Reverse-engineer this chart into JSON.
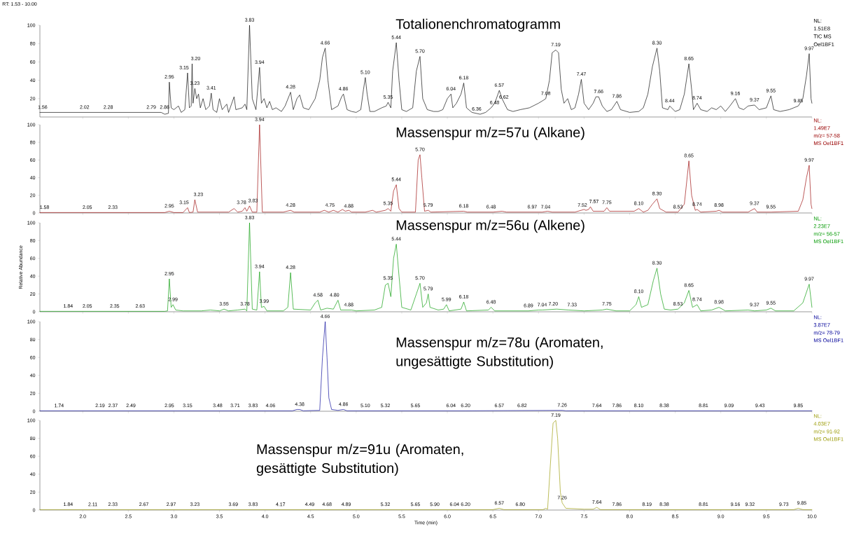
{
  "chart_data": [
    {
      "type": "line",
      "title": "Totalionenchromatogramm",
      "subtitle": "RT: 1.53 - 10.00",
      "color": "#000000",
      "xlim": [
        1.53,
        10
      ],
      "ylim": [
        0,
        100
      ],
      "yticks": [
        20,
        40,
        60,
        80,
        100
      ],
      "tick_labels": "y",
      "xticks": [
        2,
        2.5,
        3,
        3.5,
        4,
        4.5,
        5,
        5.5,
        6,
        6.5,
        7,
        7.5,
        8,
        8.5,
        9,
        9.5,
        10
      ],
      "x": [
        1.53,
        1.56,
        2.0,
        2.5,
        2.8,
        2.86,
        2.9,
        2.94,
        2.95,
        2.97,
        3.0,
        3.05,
        3.08,
        3.12,
        3.15,
        3.17,
        3.19,
        3.2,
        3.21,
        3.23,
        3.25,
        3.27,
        3.29,
        3.32,
        3.35,
        3.39,
        3.41,
        3.43,
        3.47,
        3.5,
        3.53,
        3.58,
        3.6,
        3.66,
        3.68,
        3.75,
        3.78,
        3.8,
        3.83,
        3.86,
        3.9,
        3.94,
        3.96,
        3.99,
        4.02,
        4.05,
        4.08,
        4.12,
        4.18,
        4.22,
        4.28,
        4.31,
        4.35,
        4.38,
        4.42,
        4.48,
        4.55,
        4.6,
        4.63,
        4.66,
        4.69,
        4.73,
        4.8,
        4.84,
        4.86,
        4.9,
        4.95,
        5.0,
        5.05,
        5.08,
        5.1,
        5.12,
        5.15,
        5.2,
        5.28,
        5.33,
        5.35,
        5.38,
        5.4,
        5.44,
        5.47,
        5.5,
        5.55,
        5.62,
        5.66,
        5.7,
        5.73,
        5.78,
        5.85,
        5.9,
        5.95,
        6.0,
        6.04,
        6.06,
        6.1,
        6.15,
        6.18,
        6.21,
        6.27,
        6.36,
        6.42,
        6.48,
        6.52,
        6.57,
        6.6,
        6.62,
        6.66,
        6.72,
        6.8,
        6.9,
        7.0,
        7.05,
        7.08,
        7.12,
        7.15,
        7.19,
        7.22,
        7.25,
        7.28,
        7.32,
        7.36,
        7.4,
        7.44,
        7.47,
        7.5,
        7.55,
        7.6,
        7.63,
        7.66,
        7.7,
        7.75,
        7.8,
        7.86,
        7.9,
        8.0,
        8.1,
        8.15,
        8.2,
        8.25,
        8.3,
        8.33,
        8.36,
        8.42,
        8.44,
        8.5,
        8.55,
        8.6,
        8.65,
        8.68,
        8.7,
        8.74,
        8.78,
        8.85,
        8.9,
        8.95,
        9.0,
        9.05,
        9.1,
        9.16,
        9.2,
        9.25,
        9.3,
        9.37,
        9.42,
        9.5,
        9.55,
        9.58,
        9.65,
        9.75,
        9.8,
        9.85,
        9.9,
        9.94,
        9.97,
        9.99,
        10.0
      ],
      "values": [
        5,
        5,
        5,
        5,
        5,
        5,
        3,
        4,
        38,
        10,
        8,
        12,
        5,
        8,
        48,
        10,
        12,
        58,
        15,
        31,
        20,
        25,
        10,
        20,
        8,
        12,
        26,
        8,
        5,
        20,
        8,
        14,
        5,
        22,
        8,
        10,
        14,
        8,
        100,
        20,
        8,
        54,
        15,
        20,
        10,
        17,
        8,
        10,
        6,
        12,
        27,
        8,
        20,
        24,
        10,
        8,
        20,
        40,
        65,
        75,
        40,
        8,
        12,
        22,
        25,
        8,
        6,
        5,
        8,
        30,
        43,
        25,
        6,
        6,
        10,
        12,
        16,
        10,
        50,
        81,
        40,
        8,
        6,
        10,
        50,
        66,
        20,
        8,
        6,
        6,
        8,
        20,
        25,
        10,
        15,
        25,
        37,
        10,
        5,
        3,
        5,
        10,
        15,
        29,
        20,
        16,
        8,
        6,
        8,
        10,
        15,
        18,
        20,
        40,
        70,
        73,
        70,
        30,
        15,
        20,
        8,
        10,
        25,
        41,
        15,
        8,
        15,
        22,
        22,
        12,
        6,
        8,
        17,
        8,
        5,
        6,
        10,
        25,
        55,
        75,
        50,
        10,
        8,
        12,
        6,
        8,
        25,
        58,
        30,
        8,
        15,
        8,
        6,
        10,
        8,
        12,
        6,
        12,
        20,
        10,
        8,
        12,
        13,
        8,
        10,
        23,
        8,
        6,
        8,
        10,
        12,
        20,
        45,
        69,
        20,
        15
      ],
      "annotations": [
        "NL:",
        "1.51E8",
        "TIC MS",
        "Oel1BF1",
        {
          "text": "1.56",
          "x": 1.56,
          "y": 5
        },
        {
          "text": "2.02",
          "x": 2.02,
          "y": 5
        },
        {
          "text": "2.28",
          "x": 2.28,
          "y": 5
        },
        {
          "text": "2.79",
          "x": 2.79,
          "y": 5
        },
        {
          "text": "2.86",
          "x": 2.86,
          "y": 5
        },
        {
          "text": "2.95",
          "x": 2.95,
          "y": 38
        },
        {
          "text": "3.15",
          "x": 3.15,
          "y": 48
        },
        {
          "text": "3.20",
          "x": 3.2,
          "y": 58
        },
        {
          "text": "3.23",
          "x": 3.23,
          "y": 31
        },
        {
          "text": "3.41",
          "x": 3.41,
          "y": 26
        },
        {
          "text": "3.83",
          "x": 3.83,
          "y": 100
        },
        {
          "text": "3.94",
          "x": 3.94,
          "y": 54
        },
        {
          "text": "4.28",
          "x": 4.28,
          "y": 27
        },
        {
          "text": "4.66",
          "x": 4.66,
          "y": 75
        },
        {
          "text": "4.86",
          "x": 4.86,
          "y": 25
        },
        {
          "text": "5.10",
          "x": 5.1,
          "y": 43
        },
        {
          "text": "5.35",
          "x": 5.35,
          "y": 16
        },
        {
          "text": "5.44",
          "x": 5.44,
          "y": 81
        },
        {
          "text": "5.70",
          "x": 5.7,
          "y": 66
        },
        {
          "text": "6.04",
          "x": 6.04,
          "y": 25
        },
        {
          "text": "6.18",
          "x": 6.18,
          "y": 37
        },
        {
          "text": "6.36",
          "x": 6.36,
          "y": 3
        },
        {
          "text": "6.48",
          "x": 6.48,
          "y": 10
        },
        {
          "text": "6.57",
          "x": 6.57,
          "y": 29
        },
        {
          "text": "6.62",
          "x": 6.62,
          "y": 16
        },
        {
          "text": "7.08",
          "x": 7.08,
          "y": 20
        },
        {
          "text": "7.19",
          "x": 7.19,
          "y": 73
        },
        {
          "text": "7.47",
          "x": 7.47,
          "y": 41
        },
        {
          "text": "7.66",
          "x": 7.66,
          "y": 22
        },
        {
          "text": "7.86",
          "x": 7.86,
          "y": 17
        },
        {
          "text": "8.30",
          "x": 8.3,
          "y": 75
        },
        {
          "text": "8.44",
          "x": 8.44,
          "y": 12
        },
        {
          "text": "8.65",
          "x": 8.65,
          "y": 58
        },
        {
          "text": "8.74",
          "x": 8.74,
          "y": 15
        },
        {
          "text": "9.16",
          "x": 9.16,
          "y": 20
        },
        {
          "text": "9.37",
          "x": 9.37,
          "y": 13
        },
        {
          "text": "9.55",
          "x": 9.55,
          "y": 23
        },
        {
          "text": "9.85",
          "x": 9.85,
          "y": 12
        },
        {
          "text": "9.97",
          "x": 9.97,
          "y": 69
        }
      ]
    },
    {
      "type": "line",
      "title": "Massenspur m/z=57u (Alkane)",
      "color": "#990000",
      "xlim": [
        1.53,
        10
      ],
      "ylim": [
        0,
        100
      ],
      "yticks": [
        0,
        20,
        40,
        60,
        80,
        100
      ],
      "tick_labels": "y",
      "xticks": [
        2,
        2.5,
        3,
        3.5,
        4,
        4.5,
        5,
        5.5,
        6,
        6.5,
        7,
        7.5,
        8,
        8.5,
        9,
        9.5,
        10
      ],
      "x": [
        1.53,
        2.9,
        2.95,
        3.0,
        3.1,
        3.15,
        3.17,
        3.21,
        3.23,
        3.26,
        3.6,
        3.66,
        3.7,
        3.75,
        3.78,
        3.8,
        3.83,
        3.86,
        3.91,
        3.94,
        3.97,
        4.2,
        4.28,
        4.32,
        4.6,
        4.65,
        4.7,
        4.75,
        4.8,
        4.85,
        4.88,
        4.92,
        4.95,
        5.1,
        5.18,
        5.22,
        5.32,
        5.35,
        5.38,
        5.41,
        5.44,
        5.47,
        5.5,
        5.65,
        5.68,
        5.7,
        5.72,
        5.75,
        5.79,
        5.82,
        6.18,
        6.22,
        6.5,
        6.6,
        6.65,
        7.04,
        7.1,
        7.15,
        7.4,
        7.5,
        7.52,
        7.55,
        7.57,
        7.6,
        7.72,
        7.75,
        7.78,
        8.05,
        8.1,
        8.15,
        8.2,
        8.25,
        8.3,
        8.33,
        8.4,
        8.53,
        8.6,
        8.65,
        8.68,
        8.72,
        8.74,
        8.78,
        8.95,
        8.98,
        9.02,
        9.3,
        9.37,
        9.4,
        9.55,
        9.85,
        9.9,
        9.94,
        9.97,
        9.99,
        10.0
      ],
      "values": [
        0.5,
        0.5,
        2,
        0.5,
        0.5,
        6,
        0.5,
        1,
        15,
        1,
        1,
        5,
        1,
        2,
        6,
        2,
        8,
        1,
        1,
        100,
        1,
        1,
        3,
        1,
        1,
        3,
        1,
        3,
        1,
        4,
        2,
        3,
        1,
        1,
        3,
        1,
        3,
        5,
        2,
        25,
        32,
        5,
        1,
        1,
        60,
        66,
        40,
        2,
        3,
        1,
        2,
        1,
        1,
        2,
        1,
        1,
        2,
        1,
        1,
        4,
        3,
        4,
        7,
        2,
        2,
        6,
        2,
        2,
        5,
        1,
        3,
        10,
        16,
        5,
        1,
        1,
        10,
        59,
        20,
        3,
        4,
        1,
        2,
        3,
        1,
        1,
        5,
        1,
        1,
        2,
        15,
        40,
        54,
        10,
        5
      ],
      "annotations": [
        "NL:",
        "1.49E7",
        "m/z= 57-58",
        "MS Oel1BF1",
        {
          "text": "1.58",
          "x": 1.58,
          "y": 0.5
        },
        {
          "text": "2.05",
          "x": 2.05,
          "y": 0.5
        },
        {
          "text": "2.33",
          "x": 2.33,
          "y": 0.5
        },
        {
          "text": "2.95",
          "x": 2.95,
          "y": 2
        },
        {
          "text": "3.15",
          "x": 3.15,
          "y": 6
        },
        {
          "text": "3.23",
          "x": 3.23,
          "y": 15
        },
        {
          "text": "3.78",
          "x": 3.78,
          "y": 6
        },
        {
          "text": "3.83",
          "x": 3.83,
          "y": 8
        },
        {
          "text": "3.94",
          "x": 3.94,
          "y": 100
        },
        {
          "text": "4.28",
          "x": 4.28,
          "y": 3
        },
        {
          "text": "4.75",
          "x": 4.75,
          "y": 3
        },
        {
          "text": "4.88",
          "x": 4.88,
          "y": 2
        },
        {
          "text": "5.35",
          "x": 5.35,
          "y": 5
        },
        {
          "text": "5.44",
          "x": 5.44,
          "y": 32
        },
        {
          "text": "5.70",
          "x": 5.7,
          "y": 66
        },
        {
          "text": "5.79",
          "x": 5.79,
          "y": 3
        },
        {
          "text": "6.18",
          "x": 6.18,
          "y": 2
        },
        {
          "text": "6.48",
          "x": 6.48,
          "y": 1
        },
        {
          "text": "6.97",
          "x": 6.97,
          "y": 1
        },
        {
          "text": "7.04",
          "x": 7.04,
          "y": 1
        },
        {
          "text": "7.52",
          "x": 7.52,
          "y": 3
        },
        {
          "text": "7.57",
          "x": 7.57,
          "y": 7
        },
        {
          "text": "7.75",
          "x": 7.75,
          "y": 6
        },
        {
          "text": "8.10",
          "x": 8.1,
          "y": 5
        },
        {
          "text": "8.30",
          "x": 8.3,
          "y": 16
        },
        {
          "text": "8.53",
          "x": 8.53,
          "y": 1
        },
        {
          "text": "8.65",
          "x": 8.65,
          "y": 59
        },
        {
          "text": "8.74",
          "x": 8.74,
          "y": 4
        },
        {
          "text": "8.98",
          "x": 8.98,
          "y": 3
        },
        {
          "text": "9.37",
          "x": 9.37,
          "y": 5
        },
        {
          "text": "9.55",
          "x": 9.55,
          "y": 1
        },
        {
          "text": "9.97",
          "x": 9.97,
          "y": 54
        }
      ]
    },
    {
      "type": "line",
      "title": "Massenspur m/z=56u (Alkene)",
      "ylabel": "Relative Abundance",
      "color": "#009900",
      "xlim": [
        1.53,
        10
      ],
      "ylim": [
        0,
        100
      ],
      "yticks": [
        0,
        20,
        40,
        60,
        80,
        100
      ],
      "tick_labels": "y",
      "xticks": [
        2,
        2.5,
        3,
        3.5,
        4,
        4.5,
        5,
        5.5,
        6,
        6.5,
        7,
        7.5,
        8,
        8.5,
        9,
        9.5,
        10
      ],
      "x": [
        1.53,
        2.9,
        2.93,
        2.95,
        2.97,
        2.99,
        3.02,
        3.1,
        3.3,
        3.4,
        3.5,
        3.55,
        3.6,
        3.7,
        3.78,
        3.8,
        3.83,
        3.86,
        3.91,
        3.94,
        3.96,
        3.99,
        4.02,
        4.2,
        4.25,
        4.28,
        4.31,
        4.5,
        4.55,
        4.58,
        4.61,
        4.68,
        4.75,
        4.8,
        4.83,
        4.88,
        4.95,
        5.0,
        5.2,
        5.28,
        5.32,
        5.35,
        5.38,
        5.41,
        5.44,
        5.47,
        5.5,
        5.6,
        5.66,
        5.7,
        5.73,
        5.77,
        5.79,
        5.81,
        5.9,
        5.96,
        5.99,
        6.02,
        6.15,
        6.18,
        6.21,
        6.45,
        6.48,
        6.52,
        6.89,
        7.0,
        7.04,
        7.2,
        7.33,
        7.5,
        7.7,
        7.75,
        7.85,
        8.0,
        8.07,
        8.1,
        8.13,
        8.2,
        8.26,
        8.3,
        8.34,
        8.38,
        8.45,
        8.53,
        8.6,
        8.65,
        8.69,
        8.74,
        8.78,
        8.9,
        8.98,
        9.05,
        9.3,
        9.37,
        9.5,
        9.55,
        9.6,
        9.8,
        9.9,
        9.95,
        9.97,
        10.0
      ],
      "values": [
        0.5,
        0.5,
        1,
        37,
        5,
        8,
        2,
        1,
        1,
        2,
        1,
        3,
        1,
        2,
        3,
        1,
        100,
        3,
        2,
        45,
        5,
        6,
        1,
        1,
        5,
        44,
        3,
        2,
        10,
        13,
        2,
        4,
        3,
        13,
        2,
        2,
        2,
        1,
        2,
        5,
        30,
        32,
        17,
        60,
        76,
        40,
        5,
        2,
        20,
        32,
        5,
        10,
        20,
        5,
        2,
        3,
        8,
        1,
        3,
        11,
        1,
        2,
        5,
        1,
        1,
        2,
        2,
        3,
        2,
        1,
        2,
        3,
        1,
        1,
        8,
        17,
        5,
        8,
        35,
        49,
        20,
        3,
        2,
        3,
        10,
        24,
        5,
        8,
        1,
        2,
        5,
        1,
        2,
        1,
        2,
        4,
        1,
        1,
        10,
        25,
        31,
        5
      ],
      "annotations": [
        "NL:",
        "2.23E7",
        "m/z= 56-57",
        "MS Oel1BF1",
        {
          "text": "1.84",
          "x": 1.84,
          "y": 0.5
        },
        {
          "text": "2.05",
          "x": 2.05,
          "y": 0.5
        },
        {
          "text": "2.35",
          "x": 2.35,
          "y": 0.5
        },
        {
          "text": "2.63",
          "x": 2.63,
          "y": 0.5
        },
        {
          "text": "2.95",
          "x": 2.95,
          "y": 37
        },
        {
          "text": "2.99",
          "x": 2.99,
          "y": 8
        },
        {
          "text": "3.55",
          "x": 3.55,
          "y": 3
        },
        {
          "text": "3.78",
          "x": 3.78,
          "y": 3
        },
        {
          "text": "3.83",
          "x": 3.83,
          "y": 100
        },
        {
          "text": "3.94",
          "x": 3.94,
          "y": 45
        },
        {
          "text": "3.99",
          "x": 3.99,
          "y": 6
        },
        {
          "text": "4.28",
          "x": 4.28,
          "y": 44
        },
        {
          "text": "4.58",
          "x": 4.58,
          "y": 13
        },
        {
          "text": "4.80",
          "x": 4.8,
          "y": 13
        },
        {
          "text": "4.88",
          "x": 4.88,
          "y": 2
        },
        {
          "text": "5.35",
          "x": 5.35,
          "y": 32
        },
        {
          "text": "5.44",
          "x": 5.44,
          "y": 76
        },
        {
          "text": "5.70",
          "x": 5.7,
          "y": 32
        },
        {
          "text": "5.79",
          "x": 5.79,
          "y": 20
        },
        {
          "text": "5.99",
          "x": 5.99,
          "y": 8
        },
        {
          "text": "6.18",
          "x": 6.18,
          "y": 11
        },
        {
          "text": "6.48",
          "x": 6.48,
          "y": 5
        },
        {
          "text": "6.89",
          "x": 6.89,
          "y": 1
        },
        {
          "text": "7.04",
          "x": 7.04,
          "y": 2
        },
        {
          "text": "7.20",
          "x": 7.2,
          "y": 3
        },
        {
          "text": "7.33",
          "x": 7.33,
          "y": 2
        },
        {
          "text": "7.75",
          "x": 7.75,
          "y": 3
        },
        {
          "text": "8.10",
          "x": 8.1,
          "y": 17
        },
        {
          "text": "8.30",
          "x": 8.3,
          "y": 49
        },
        {
          "text": "8.53",
          "x": 8.53,
          "y": 3
        },
        {
          "text": "8.65",
          "x": 8.65,
          "y": 24
        },
        {
          "text": "8.74",
          "x": 8.74,
          "y": 8
        },
        {
          "text": "8.98",
          "x": 8.98,
          "y": 5
        },
        {
          "text": "9.37",
          "x": 9.37,
          "y": 2
        },
        {
          "text": "9.55",
          "x": 9.55,
          "y": 4
        },
        {
          "text": "9.97",
          "x": 9.97,
          "y": 31
        }
      ]
    },
    {
      "type": "line",
      "title": "Massenspur m/z=78u (Aromaten, ungesättigte Substitution)",
      "color": "#000099",
      "xlim": [
        1.53,
        10
      ],
      "ylim": [
        0,
        100
      ],
      "yticks": [
        0,
        20,
        40,
        60,
        80,
        100
      ],
      "tick_labels": "y",
      "xticks": [
        2,
        2.5,
        3,
        3.5,
        4,
        4.5,
        5,
        5.5,
        6,
        6.5,
        7,
        7.5,
        8,
        8.5,
        9,
        9.5,
        10
      ],
      "x": [
        1.53,
        4.3,
        4.35,
        4.38,
        4.42,
        4.6,
        4.63,
        4.66,
        4.68,
        4.7,
        4.73,
        4.8,
        4.86,
        4.9,
        6.2,
        7.26,
        7.3,
        10.0
      ],
      "values": [
        0.5,
        0.5,
        2,
        2,
        0.5,
        1,
        60,
        100,
        60,
        15,
        2,
        1,
        2,
        0.5,
        0.5,
        1,
        0.5,
        0.5
      ],
      "annotations": [
        "NL:",
        "3.87E7",
        "m/z= 78-79",
        "MS Oel1BF1",
        {
          "text": "1.74",
          "x": 1.74,
          "y": 0.5
        },
        {
          "text": "2.19",
          "x": 2.19,
          "y": 0.5
        },
        {
          "text": "2.37",
          "x": 2.37,
          "y": 0.5
        },
        {
          "text": "2.49",
          "x": 2.49,
          "y": 0.5
        },
        {
          "text": "2.95",
          "x": 2.95,
          "y": 0.5
        },
        {
          "text": "3.15",
          "x": 3.15,
          "y": 0.5
        },
        {
          "text": "3.48",
          "x": 3.48,
          "y": 0.5
        },
        {
          "text": "3.71",
          "x": 3.71,
          "y": 0.5
        },
        {
          "text": "3.83",
          "x": 3.83,
          "y": 0.5
        },
        {
          "text": "4.06",
          "x": 4.06,
          "y": 0.5
        },
        {
          "text": "4.38",
          "x": 4.38,
          "y": 2
        },
        {
          "text": "4.66",
          "x": 4.66,
          "y": 100
        },
        {
          "text": "4.86",
          "x": 4.86,
          "y": 2
        },
        {
          "text": "5.10",
          "x": 5.1,
          "y": 0.5
        },
        {
          "text": "5.32",
          "x": 5.32,
          "y": 0.5
        },
        {
          "text": "5.65",
          "x": 5.65,
          "y": 0.5
        },
        {
          "text": "6.04",
          "x": 6.04,
          "y": 0.5
        },
        {
          "text": "6.20",
          "x": 6.2,
          "y": 0.5
        },
        {
          "text": "6.57",
          "x": 6.57,
          "y": 0.5
        },
        {
          "text": "6.82",
          "x": 6.82,
          "y": 0.5
        },
        {
          "text": "7.26",
          "x": 7.26,
          "y": 1
        },
        {
          "text": "7.64",
          "x": 7.64,
          "y": 0.5
        },
        {
          "text": "7.86",
          "x": 7.86,
          "y": 0.5
        },
        {
          "text": "8.10",
          "x": 8.1,
          "y": 0.5
        },
        {
          "text": "8.38",
          "x": 8.38,
          "y": 0.5
        },
        {
          "text": "8.81",
          "x": 8.81,
          "y": 0.5
        },
        {
          "text": "9.09",
          "x": 9.09,
          "y": 0.5
        },
        {
          "text": "9.43",
          "x": 9.43,
          "y": 0.5
        },
        {
          "text": "9.85",
          "x": 9.85,
          "y": 0.5
        }
      ]
    },
    {
      "type": "line",
      "title": "Massenspur m/z=91u (Aromaten, gesättigte Substitution)",
      "xlabel": "Time (min)",
      "color": "#999900",
      "xlim": [
        1.53,
        10
      ],
      "ylim": [
        0,
        100
      ],
      "yticks": [
        0,
        20,
        40,
        60,
        80,
        100
      ],
      "xticks": [
        {
          "value": 2,
          "label": "2.0"
        },
        {
          "value": 2.5,
          "label": "2.5"
        },
        {
          "value": 3,
          "label": "3.0"
        },
        {
          "value": 3.5,
          "label": "3.5"
        },
        {
          "value": 4,
          "label": "4.0"
        },
        {
          "value": 4.5,
          "label": "4.5"
        },
        {
          "value": 5,
          "label": "5.0"
        },
        {
          "value": 5.5,
          "label": "5.5"
        },
        {
          "value": 6,
          "label": "6.0"
        },
        {
          "value": 6.5,
          "label": "6.5"
        },
        {
          "value": 7,
          "label": "7.0"
        },
        {
          "value": 7.5,
          "label": "7.5"
        },
        {
          "value": 8,
          "label": "8.0"
        },
        {
          "value": 8.5,
          "label": "8.5"
        },
        {
          "value": 9,
          "label": "9.0"
        },
        {
          "value": 9.5,
          "label": "9.5"
        },
        {
          "value": 10,
          "label": "10.0"
        }
      ],
      "x": [
        1.53,
        6.5,
        6.57,
        6.62,
        7.05,
        7.08,
        7.1,
        7.13,
        7.16,
        7.19,
        7.21,
        7.24,
        7.26,
        7.3,
        7.5,
        7.6,
        7.64,
        7.68,
        9.8,
        9.85,
        9.9,
        10.0
      ],
      "values": [
        0.5,
        0.5,
        2,
        0.5,
        0.5,
        2,
        1,
        50,
        97,
        100,
        80,
        20,
        8,
        2,
        1,
        1,
        3,
        0.5,
        0.5,
        2,
        0.5,
        0.5
      ],
      "annotations": [
        "NL:",
        "4.03E7",
        "m/z= 91-92",
        "MS Oel1BF1",
        {
          "text": "1.84",
          "x": 1.84,
          "y": 0.5
        },
        {
          "text": "2.11",
          "x": 2.11,
          "y": 0.5
        },
        {
          "text": "2.33",
          "x": 2.33,
          "y": 0.5
        },
        {
          "text": "2.67",
          "x": 2.67,
          "y": 0.5
        },
        {
          "text": "2.97",
          "x": 2.97,
          "y": 0.5
        },
        {
          "text": "3.23",
          "x": 3.23,
          "y": 0.5
        },
        {
          "text": "3.69",
          "x": 3.69,
          "y": 0.5
        },
        {
          "text": "3.83",
          "x": 3.83,
          "y": 0.5
        },
        {
          "text": "4.17",
          "x": 4.17,
          "y": 0.5
        },
        {
          "text": "4.49",
          "x": 4.49,
          "y": 0.5
        },
        {
          "text": "4.68",
          "x": 4.68,
          "y": 0.5
        },
        {
          "text": "4.89",
          "x": 4.89,
          "y": 0.5
        },
        {
          "text": "5.32",
          "x": 5.32,
          "y": 0.5
        },
        {
          "text": "5.65",
          "x": 5.65,
          "y": 0.5
        },
        {
          "text": "5.90",
          "x": 5.9,
          "y": 0.5
        },
        {
          "text": "6.04",
          "x": 6.04,
          "y": 0.5
        },
        {
          "text": "6.20",
          "x": 6.2,
          "y": 0.5
        },
        {
          "text": "6.57",
          "x": 6.57,
          "y": 2
        },
        {
          "text": "6.80",
          "x": 6.8,
          "y": 0.5
        },
        {
          "text": "7.19",
          "x": 7.19,
          "y": 100
        },
        {
          "text": "7.26",
          "x": 7.26,
          "y": 8
        },
        {
          "text": "7.64",
          "x": 7.64,
          "y": 3
        },
        {
          "text": "7.86",
          "x": 7.86,
          "y": 0.5
        },
        {
          "text": "8.19",
          "x": 8.19,
          "y": 0.5
        },
        {
          "text": "8.38",
          "x": 8.38,
          "y": 0.5
        },
        {
          "text": "8.81",
          "x": 8.81,
          "y": 0.5
        },
        {
          "text": "9.16",
          "x": 9.16,
          "y": 0.5
        },
        {
          "text": "9.32",
          "x": 9.32,
          "y": 0.5
        },
        {
          "text": "9.73",
          "x": 9.73,
          "y": 0.5
        },
        {
          "text": "9.85",
          "x": 9.85,
          "y": 2
        }
      ]
    }
  ]
}
